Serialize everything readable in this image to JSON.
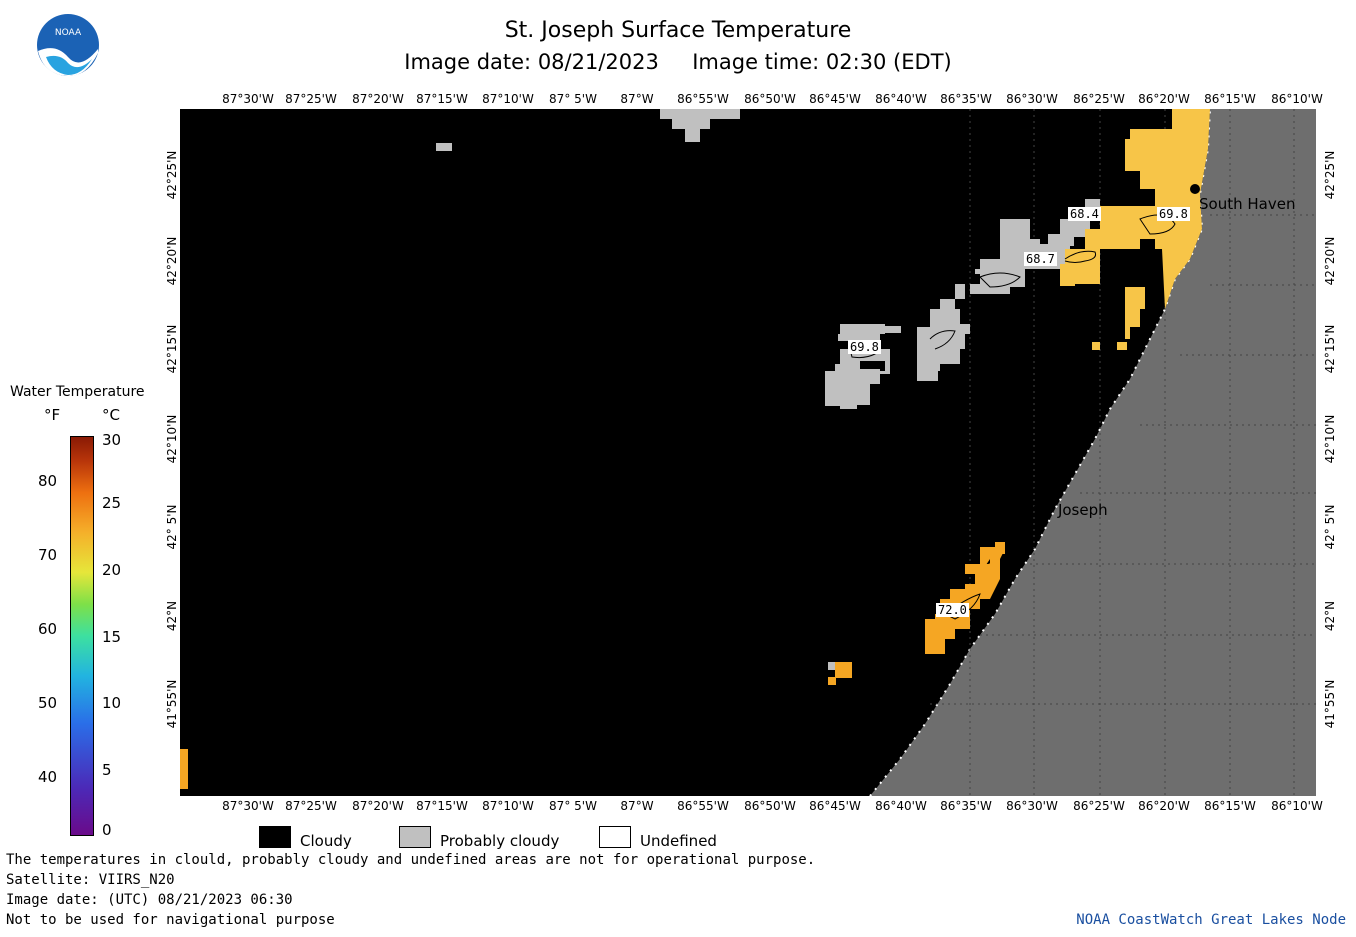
{
  "title": "St. Joseph Surface Temperature",
  "subtitle": "Image date: 08/21/2023     Image time: 02:30 (EDT)",
  "logo_text": "NOAA",
  "lon_labels": [
    "87°30'W",
    "87°25'W",
    "87°20'W",
    "87°15'W",
    "87°10'W",
    "87° 5'W",
    "87°W",
    "86°55'W",
    "86°50'W",
    "86°45'W",
    "86°40'W",
    "86°35'W",
    "86°30'W",
    "86°25'W",
    "86°20'W",
    "86°15'W",
    "86°10'W"
  ],
  "lat_labels": [
    "42°25'N",
    "42°20'N",
    "42°15'N",
    "42°10'N",
    "42° 5'N",
    "42°N",
    "41°55'N"
  ],
  "places": {
    "south_haven": "South Haven",
    "st_joseph": "St. Joseph"
  },
  "temp_labels": [
    "68.4",
    "69.8",
    "68.7",
    "69.8",
    "72.0"
  ],
  "colorbar": {
    "title": "Water Temperature",
    "unit_f": "°F",
    "unit_c": "°C",
    "f_ticks": [
      "80",
      "70",
      "60",
      "50",
      "40"
    ],
    "c_ticks": [
      "30",
      "25",
      "20",
      "15",
      "10",
      "5",
      "0"
    ]
  },
  "legend": {
    "cloudy": "Cloudy",
    "probably_cloudy": "Probably cloudy",
    "undefined": "Undefined"
  },
  "colors": {
    "cloudy": "#000000",
    "probably_cloudy": "#c0c0c0",
    "land": "#6e6e6e",
    "warm": "#f5a623",
    "warmer": "#f7c548"
  },
  "footer": {
    "note": "The temperatures in clould, probably cloudy and undefined areas are not for operational purpose.",
    "satellite": "Satellite: VIIRS_N20",
    "utc_date": "Image date: (UTC) 08/21/2023  06:30",
    "nav": "Not to be used for navigational purpose",
    "credit": "NOAA CoastWatch Great Lakes Node"
  }
}
